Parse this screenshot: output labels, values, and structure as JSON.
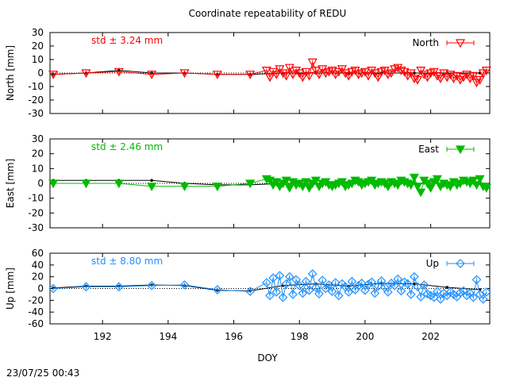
{
  "title": "Coordinate repeatability of REDU",
  "timestamp": "23/07/25 00:43",
  "chart_data": {
    "type": "scatter",
    "xlabel": "DOY",
    "xlim": [
      190.4,
      203.8
    ],
    "x_ticks": [
      192,
      194,
      196,
      198,
      200,
      202
    ],
    "grid": false,
    "legend_placement": "top-right",
    "panels": [
      {
        "id": "north",
        "ylabel": "North [mm]",
        "ylim": [
          -30,
          30
        ],
        "y_ticks": [
          30,
          20,
          10,
          0,
          -10,
          -20,
          -30
        ],
        "std_label": "std ± 3.24 mm",
        "series_name": "North",
        "color": "#ff0000",
        "marker": "triangle-down-open",
        "daily_x": [
          190.5,
          191.5,
          192.5,
          193.5,
          194.5,
          195.5,
          196.5
        ],
        "daily_y": [
          -1,
          0,
          1,
          -1,
          0,
          -1,
          -1
        ],
        "daily_mean_y": [
          -1,
          0,
          2,
          0,
          0,
          -1,
          -1
        ],
        "hourly_x": [
          197.0,
          197.1,
          197.2,
          197.3,
          197.4,
          197.5,
          197.6,
          197.7,
          197.8,
          197.9,
          198.0,
          198.1,
          198.2,
          198.3,
          198.4,
          198.5,
          198.6,
          198.7,
          198.8,
          198.9,
          199.0,
          199.1,
          199.2,
          199.3,
          199.4,
          199.5,
          199.6,
          199.7,
          199.8,
          199.9,
          200.0,
          200.1,
          200.2,
          200.3,
          200.4,
          200.5,
          200.6,
          200.7,
          200.8,
          200.9,
          201.0,
          201.1,
          201.2,
          201.3,
          201.4,
          201.5,
          201.6,
          201.7,
          201.8,
          201.9,
          202.0,
          202.1,
          202.2,
          202.3,
          202.4,
          202.5,
          202.6,
          202.7,
          202.8,
          202.9,
          203.0,
          203.1,
          203.2,
          203.3,
          203.4,
          203.5,
          203.6,
          203.7
        ],
        "hourly_y": [
          2,
          -3,
          1,
          -1,
          3,
          0,
          -2,
          4,
          -1,
          2,
          0,
          -3,
          1,
          -2,
          8,
          2,
          -1,
          3,
          0,
          1,
          2,
          -1,
          1,
          3,
          0,
          -2,
          1,
          2,
          -1,
          0,
          1,
          -2,
          2,
          0,
          -3,
          1,
          2,
          -1,
          0,
          3,
          4,
          2,
          1,
          -2,
          0,
          -4,
          -5,
          2,
          -1,
          -3,
          0,
          1,
          -2,
          -4,
          0,
          -3,
          -1,
          -4,
          -2,
          -5,
          -3,
          -1,
          -4,
          -2,
          -7,
          -5,
          0,
          2
        ],
        "mean_x": [
          197.5,
          198.5,
          199.5,
          200.5,
          201.5,
          202.5,
          203.5
        ],
        "mean_y": [
          0,
          0,
          0,
          0,
          0,
          0,
          0
        ]
      },
      {
        "id": "east",
        "ylabel": "East [mm]",
        "ylim": [
          -30,
          30
        ],
        "y_ticks": [
          30,
          20,
          10,
          0,
          -10,
          -20,
          -30
        ],
        "std_label": "std ± 2.46 mm",
        "series_name": "East",
        "color": "#00bb00",
        "marker": "triangle-down-filled",
        "daily_x": [
          190.5,
          191.5,
          192.5,
          193.5,
          194.5,
          195.5,
          196.5
        ],
        "daily_y": [
          0,
          0,
          0,
          -2,
          -2,
          -2,
          0
        ],
        "daily_mean_y": [
          2,
          2,
          2,
          2,
          0,
          -1,
          -1
        ],
        "hourly_x": [
          197.0,
          197.1,
          197.2,
          197.3,
          197.4,
          197.5,
          197.6,
          197.7,
          197.8,
          197.9,
          198.0,
          198.1,
          198.2,
          198.3,
          198.4,
          198.5,
          198.6,
          198.7,
          198.8,
          198.9,
          199.0,
          199.1,
          199.2,
          199.3,
          199.4,
          199.5,
          199.6,
          199.7,
          199.8,
          199.9,
          200.0,
          200.1,
          200.2,
          200.3,
          200.4,
          200.5,
          200.6,
          200.7,
          200.8,
          200.9,
          201.0,
          201.1,
          201.2,
          201.3,
          201.4,
          201.5,
          201.6,
          201.7,
          201.8,
          201.9,
          202.0,
          202.1,
          202.2,
          202.3,
          202.4,
          202.5,
          202.6,
          202.7,
          202.8,
          202.9,
          203.0,
          203.1,
          203.2,
          203.3,
          203.4,
          203.5,
          203.6,
          203.7
        ],
        "hourly_y": [
          3,
          2,
          -1,
          1,
          -2,
          0,
          2,
          -3,
          1,
          -1,
          0,
          -2,
          1,
          -3,
          0,
          2,
          -2,
          0,
          1,
          -1,
          -2,
          -1,
          0,
          1,
          -2,
          -1,
          0,
          2,
          1,
          -1,
          0,
          1,
          2,
          -1,
          0,
          1,
          0,
          -2,
          1,
          0,
          -1,
          2,
          1,
          0,
          -1,
          4,
          -2,
          -6,
          2,
          0,
          -3,
          1,
          3,
          -2,
          0,
          -1,
          -2,
          1,
          -1,
          0,
          2,
          1,
          0,
          2,
          -1,
          3,
          -2,
          -3
        ],
        "mean_x": [
          197.5,
          198.5,
          199.5,
          200.5,
          201.5,
          202.5,
          203.5
        ],
        "mean_y": [
          0,
          0,
          0,
          0,
          0,
          0,
          0
        ]
      },
      {
        "id": "up",
        "ylabel": "Up [mm]",
        "ylim": [
          -60,
          60
        ],
        "y_ticks": [
          60,
          40,
          20,
          0,
          -20,
          -40,
          -60
        ],
        "std_label": "std ± 8.80 mm",
        "series_name": "Up",
        "color": "#1e90ff",
        "marker": "diamond-open",
        "daily_x": [
          190.5,
          191.5,
          192.5,
          193.5,
          194.5,
          195.5,
          196.5
        ],
        "daily_y": [
          0,
          3,
          3,
          5,
          6,
          -2,
          -5
        ],
        "daily_mean_y": [
          1,
          4,
          4,
          6,
          5,
          -3,
          -4
        ],
        "hourly_x": [
          197.0,
          197.1,
          197.2,
          197.3,
          197.4,
          197.5,
          197.6,
          197.7,
          197.8,
          197.9,
          198.0,
          198.1,
          198.2,
          198.3,
          198.4,
          198.5,
          198.6,
          198.7,
          198.8,
          198.9,
          199.0,
          199.1,
          199.2,
          199.3,
          199.4,
          199.5,
          199.6,
          199.7,
          199.8,
          199.9,
          200.0,
          200.1,
          200.2,
          200.3,
          200.4,
          200.5,
          200.6,
          200.7,
          200.8,
          200.9,
          201.0,
          201.1,
          201.2,
          201.3,
          201.4,
          201.5,
          201.6,
          201.7,
          201.8,
          201.9,
          202.0,
          202.1,
          202.2,
          202.3,
          202.4,
          202.5,
          202.6,
          202.7,
          202.8,
          202.9,
          203.0,
          203.1,
          203.2,
          203.3,
          203.4,
          203.5,
          203.6,
          203.7
        ],
        "hourly_y": [
          10,
          -12,
          18,
          -6,
          22,
          -15,
          8,
          20,
          -10,
          15,
          5,
          -8,
          12,
          -3,
          25,
          2,
          -9,
          14,
          0,
          6,
          -5,
          10,
          -12,
          8,
          3,
          -6,
          12,
          -2,
          5,
          9,
          -3,
          7,
          11,
          -8,
          4,
          13,
          2,
          -6,
          9,
          5,
          16,
          -4,
          11,
          8,
          -10,
          20,
          3,
          -14,
          6,
          -9,
          -12,
          -15,
          -5,
          -18,
          -8,
          -12,
          -6,
          -10,
          -14,
          -7,
          -4,
          -12,
          -8,
          -15,
          15,
          -10,
          -18,
          -6
        ],
        "mean_x": [
          197.5,
          198.5,
          199.5,
          200.5,
          201.5,
          202.5,
          203.5
        ],
        "mean_y": [
          5,
          8,
          4,
          9,
          8,
          2,
          -2
        ]
      }
    ]
  }
}
